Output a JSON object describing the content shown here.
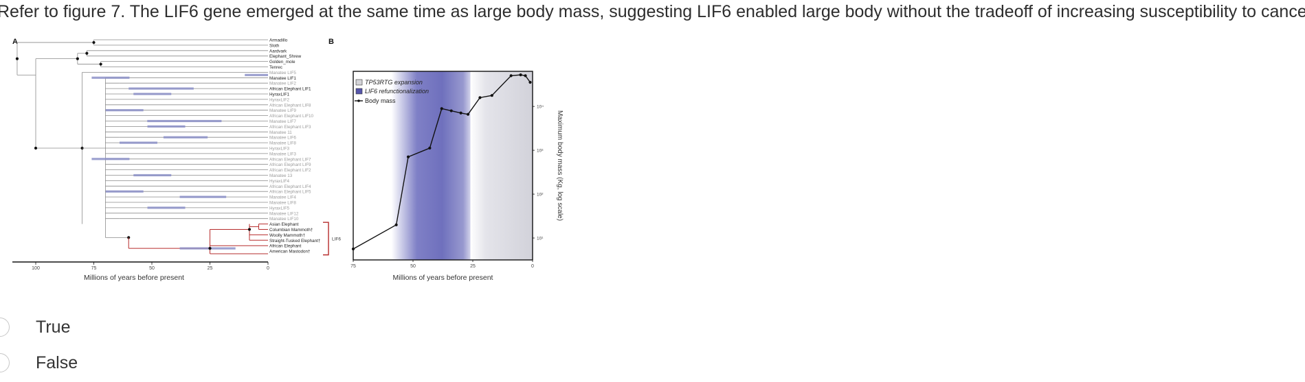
{
  "question": {
    "text": "Refer to figure 7. The LIF6 gene emerged at the same time as large body mass, suggesting LIF6 enabled large body without the tradeoff of increasing susceptibility to cancer."
  },
  "figure": {
    "panel_a": {
      "label": "A",
      "taxa": [
        {
          "name": "Armadillo",
          "style": "dark"
        },
        {
          "name": "Sloth",
          "style": "dark"
        },
        {
          "name": "Aardvark",
          "style": "dark"
        },
        {
          "name": "Elephant_Shrew",
          "style": "dark"
        },
        {
          "name": "Golden_mole",
          "style": "dark"
        },
        {
          "name": "Tenrec",
          "style": "dark"
        },
        {
          "name": "Manatee LIF5",
          "style": "gray"
        },
        {
          "name": "Manatee LIF1",
          "style": "dark"
        },
        {
          "name": "Manatee LIF2",
          "style": "gray"
        },
        {
          "name": "African Elephant LIF1",
          "style": "dark"
        },
        {
          "name": "HyraxLIF1",
          "style": "dark"
        },
        {
          "name": "HyraxLIF2",
          "style": "gray"
        },
        {
          "name": "African Elephant LIF8",
          "style": "gray"
        },
        {
          "name": "Manatee LIF9",
          "style": "gray"
        },
        {
          "name": "African Elephant LIF10",
          "style": "gray"
        },
        {
          "name": "Manatee LIF7",
          "style": "gray"
        },
        {
          "name": "African Elephant LIF3",
          "style": "gray"
        },
        {
          "name": "Manatee 11",
          "style": "gray"
        },
        {
          "name": "Manatee LIF6",
          "style": "gray"
        },
        {
          "name": "Manatee LIF8",
          "style": "gray"
        },
        {
          "name": "HyraxLIF3",
          "style": "gray"
        },
        {
          "name": "Manatee LIF3",
          "style": "gray"
        },
        {
          "name": "African Elephant LIF7",
          "style": "gray"
        },
        {
          "name": "African Elephant LIF9",
          "style": "gray"
        },
        {
          "name": "African Elephant LIF2",
          "style": "gray"
        },
        {
          "name": "Manatee 13",
          "style": "gray"
        },
        {
          "name": "HyraxLIF4",
          "style": "gray"
        },
        {
          "name": "African Elephant LIF4",
          "style": "gray"
        },
        {
          "name": "African Elephant LIF5",
          "style": "gray"
        },
        {
          "name": "Manatee LIF4",
          "style": "gray"
        },
        {
          "name": "Manatee LIF8",
          "style": "gray"
        },
        {
          "name": "HyraxLIF5",
          "style": "gray"
        },
        {
          "name": "Manatee LIF12",
          "style": "gray"
        },
        {
          "name": "Manatee LIF10",
          "style": "gray"
        },
        {
          "name": "Asian Elephant",
          "style": "dark"
        },
        {
          "name": "Columbian Mammoth†",
          "style": "dark"
        },
        {
          "name": "Woolly Mammoth†",
          "style": "dark"
        },
        {
          "name": "Straight-Tusked Elephant†",
          "style": "dark"
        },
        {
          "name": "African Elephant",
          "style": "dark"
        },
        {
          "name": "American Mastodon†",
          "style": "dark"
        }
      ],
      "bracket_label": "LIF6",
      "axis_ticks": [
        "100",
        "75",
        "50",
        "25",
        "0"
      ],
      "axis_label": "Millions of years before present"
    },
    "panel_b": {
      "label": "B",
      "legend": [
        {
          "label": "TP53RTG expansion",
          "color": "#d4d4d8"
        },
        {
          "label": "LIF6 refunctionalization",
          "color": "#5555aa"
        },
        {
          "label": "Body mass",
          "color": "#111111"
        }
      ],
      "x_ticks": [
        "75",
        "50",
        "25",
        "0"
      ],
      "y_ticks": [
        "10⁴",
        "10³",
        "10²",
        "10¹"
      ],
      "x_label": "Millions of years before present",
      "y_label": "Maximum body mass (Kg, log scale)"
    }
  },
  "chart_data": {
    "type": "line",
    "title": "",
    "xlabel": "Millions of years before present",
    "ylabel": "Maximum body mass (Kg, log scale)",
    "x_reversed": true,
    "y_log": true,
    "xlim": [
      75,
      0
    ],
    "ylim_log10": [
      0.5,
      4.8
    ],
    "series": [
      {
        "name": "Body mass",
        "x": [
          75,
          57,
          52,
          43,
          38,
          34,
          30,
          27,
          22,
          17,
          9,
          5,
          3,
          1
        ],
        "y_log10": [
          0.75,
          1.3,
          2.85,
          3.05,
          3.95,
          3.9,
          3.85,
          3.82,
          4.2,
          4.25,
          4.7,
          4.72,
          4.7,
          4.55
        ]
      }
    ],
    "bands": [
      {
        "label": "LIF6 refunctionalization",
        "from": 59,
        "to": 26,
        "color": "#5555aa"
      },
      {
        "label": "TP53RTG expansion",
        "from": 26,
        "to": 0,
        "color": "#d4d4d8"
      }
    ]
  },
  "options": [
    {
      "label": "True"
    },
    {
      "label": "False"
    }
  ]
}
